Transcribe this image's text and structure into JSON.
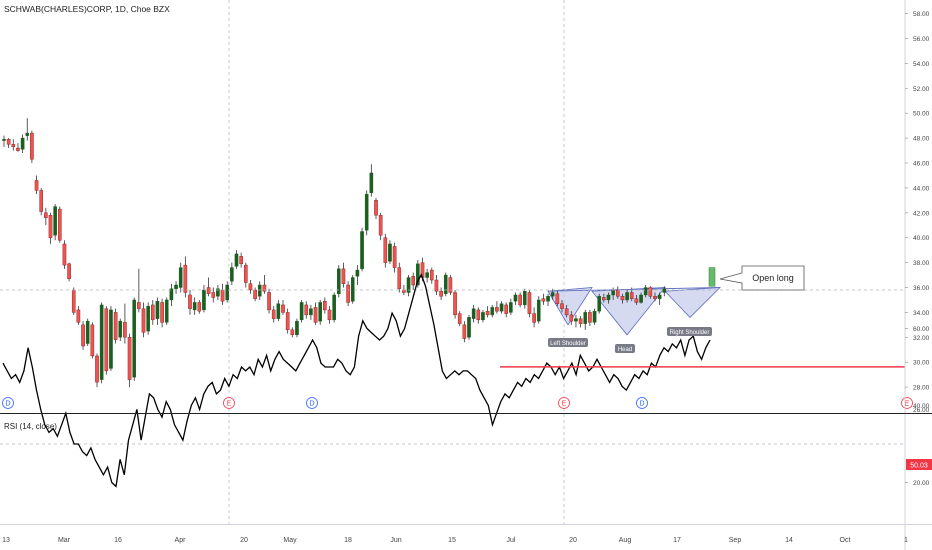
{
  "header": {
    "symbol_title": "SCHWAB(CHARLES)CORP, 1D, Choe BZX"
  },
  "colors": {
    "up": "#26a69a",
    "up_dark": "#1b5e20",
    "down": "#ef5350",
    "down_dark": "#7b1c1c",
    "wick": "#333333",
    "pattern_fill": "#c5cae9",
    "pattern_stroke": "#5c6bc0",
    "rsi_line": "#000000",
    "rsi_level": "#f23645",
    "price_box": "#f23645"
  },
  "chart_data": [
    {
      "type": "candlestick",
      "title": "SCHWAB(CHARLES)CORP, 1D, Choe BZX",
      "y_axis": {
        "ticks": [
          "28.00",
          "30.00",
          "32.00",
          "34.00",
          "36.00",
          "38.00",
          "40.00",
          "42.00",
          "44.00",
          "46.00",
          "48.00",
          "50.00",
          "52.00",
          "54.00",
          "56.00",
          "58.00"
        ],
        "cut_label": "26.00",
        "range": [
          26,
          59
        ]
      },
      "x_axis": {
        "labels": [
          "13",
          "Mar",
          "16",
          "Apr",
          "20",
          "May",
          "18",
          "Jun",
          "15",
          "Jul",
          "20",
          "Aug",
          "17",
          "Sep",
          "14",
          "Oct",
          "1"
        ]
      },
      "candles": [
        [
          47.8,
          48.2,
          47.3,
          47.9
        ],
        [
          47.9,
          48.0,
          47.2,
          47.5
        ],
        [
          47.5,
          47.9,
          47.0,
          47.3
        ],
        [
          47.2,
          47.6,
          46.9,
          47.0
        ],
        [
          47.1,
          48.3,
          46.8,
          48.0
        ],
        [
          48.2,
          49.6,
          47.8,
          48.4
        ],
        [
          48.4,
          48.6,
          46.0,
          46.3
        ],
        [
          44.6,
          45.0,
          43.5,
          43.8
        ],
        [
          43.8,
          44.0,
          41.8,
          42.1
        ],
        [
          42.0,
          42.4,
          41.0,
          41.6
        ],
        [
          41.8,
          42.0,
          39.5,
          40.0
        ],
        [
          40.2,
          42.7,
          39.8,
          42.5
        ],
        [
          42.3,
          42.5,
          39.6,
          39.8
        ],
        [
          39.5,
          39.8,
          37.5,
          37.8
        ],
        [
          37.9,
          38.0,
          36.5,
          36.7
        ],
        [
          35.8,
          36.0,
          33.8,
          34.0
        ],
        [
          34.2,
          34.5,
          33.0,
          33.2
        ],
        [
          33.0,
          33.3,
          31.0,
          31.3
        ],
        [
          31.5,
          33.5,
          31.3,
          33.3
        ],
        [
          33.0,
          33.2,
          30.3,
          30.5
        ],
        [
          30.5,
          30.7,
          28.0,
          28.4
        ],
        [
          28.6,
          34.8,
          28.3,
          34.6
        ],
        [
          34.3,
          34.5,
          29.0,
          29.3
        ],
        [
          29.5,
          34.5,
          29.3,
          34.2
        ],
        [
          34.0,
          34.3,
          31.5,
          31.8
        ],
        [
          32.0,
          33.5,
          31.7,
          33.3
        ],
        [
          33.2,
          34.7,
          31.5,
          32.0
        ],
        [
          32.0,
          32.3,
          28.0,
          28.6
        ],
        [
          28.8,
          35.2,
          28.5,
          35.0
        ],
        [
          34.8,
          37.5,
          34.0,
          34.3
        ],
        [
          34.3,
          34.8,
          32.0,
          32.4
        ],
        [
          32.5,
          34.8,
          32.2,
          34.5
        ],
        [
          34.6,
          35.0,
          33.0,
          33.4
        ],
        [
          33.5,
          35.2,
          33.0,
          34.9
        ],
        [
          34.8,
          35.1,
          32.8,
          33.2
        ],
        [
          33.2,
          35.2,
          33.0,
          35.0
        ],
        [
          35.0,
          36.3,
          34.5,
          35.9
        ],
        [
          35.9,
          36.5,
          35.5,
          36.2
        ],
        [
          36.0,
          38.0,
          35.6,
          37.6
        ],
        [
          37.8,
          38.5,
          35.2,
          35.6
        ],
        [
          35.4,
          35.8,
          33.8,
          34.3
        ],
        [
          34.2,
          35.2,
          33.8,
          34.8
        ],
        [
          34.8,
          35.0,
          33.9,
          34.1
        ],
        [
          34.2,
          36.2,
          34.0,
          35.8
        ],
        [
          36.0,
          36.8,
          35.3,
          35.5
        ],
        [
          35.6,
          36.0,
          34.8,
          35.2
        ],
        [
          35.3,
          36.2,
          35.0,
          35.9
        ],
        [
          35.8,
          36.3,
          34.6,
          34.9
        ],
        [
          35.0,
          36.5,
          34.8,
          36.2
        ],
        [
          36.5,
          38.0,
          36.2,
          37.6
        ],
        [
          37.7,
          39.0,
          37.5,
          38.7
        ],
        [
          38.5,
          38.8,
          37.6,
          37.9
        ],
        [
          37.8,
          38.0,
          36.0,
          36.4
        ],
        [
          36.3,
          36.6,
          35.5,
          35.8
        ],
        [
          35.8,
          36.0,
          34.9,
          35.1
        ],
        [
          35.3,
          36.5,
          35.0,
          36.2
        ],
        [
          36.2,
          37.0,
          35.5,
          35.7
        ],
        [
          35.6,
          35.9,
          33.9,
          34.2
        ],
        [
          34.2,
          34.5,
          33.2,
          33.5
        ],
        [
          33.5,
          35.0,
          33.3,
          34.7
        ],
        [
          34.6,
          35.0,
          33.8,
          34.0
        ],
        [
          34.0,
          34.3,
          32.3,
          32.6
        ],
        [
          32.6,
          32.8,
          32.0,
          32.2
        ],
        [
          32.2,
          33.5,
          32.0,
          33.3
        ],
        [
          33.4,
          35.0,
          33.2,
          34.8
        ],
        [
          34.6,
          34.9,
          33.5,
          33.8
        ],
        [
          33.8,
          34.6,
          33.4,
          34.3
        ],
        [
          34.4,
          34.8,
          33.0,
          33.2
        ],
        [
          33.3,
          35.0,
          33.0,
          34.8
        ],
        [
          34.9,
          35.2,
          33.9,
          34.2
        ],
        [
          34.2,
          34.5,
          33.1,
          33.4
        ],
        [
          33.4,
          35.6,
          33.2,
          35.4
        ],
        [
          35.5,
          37.8,
          35.2,
          37.5
        ],
        [
          37.5,
          38.0,
          36.0,
          36.3
        ],
        [
          36.2,
          36.5,
          34.5,
          34.8
        ],
        [
          34.9,
          37.0,
          34.7,
          36.8
        ],
        [
          36.9,
          37.8,
          36.2,
          37.4
        ],
        [
          37.5,
          40.8,
          37.3,
          40.5
        ],
        [
          40.6,
          43.8,
          40.2,
          43.5
        ],
        [
          43.6,
          45.9,
          43.3,
          45.2
        ],
        [
          43.0,
          43.2,
          41.5,
          41.8
        ],
        [
          41.8,
          42.0,
          39.8,
          40.2
        ],
        [
          40.0,
          40.3,
          37.6,
          38.0
        ],
        [
          38.1,
          39.8,
          37.9,
          39.5
        ],
        [
          39.3,
          39.6,
          37.2,
          37.6
        ],
        [
          37.6,
          38.0,
          35.6,
          35.9
        ],
        [
          35.8,
          36.2,
          35.4,
          35.6
        ],
        [
          35.6,
          37.0,
          35.3,
          36.8
        ],
        [
          36.9,
          37.2,
          35.8,
          36.2
        ],
        [
          36.2,
          38.2,
          36.0,
          37.9
        ],
        [
          38.0,
          38.4,
          36.5,
          36.8
        ],
        [
          36.8,
          37.5,
          36.4,
          37.2
        ],
        [
          37.4,
          37.6,
          36.3,
          36.6
        ],
        [
          36.6,
          37.0,
          35.4,
          35.7
        ],
        [
          35.7,
          36.0,
          35.0,
          35.3
        ],
        [
          35.5,
          37.2,
          35.3,
          37.0
        ],
        [
          36.8,
          37.0,
          35.4,
          35.6
        ],
        [
          35.6,
          35.8,
          33.5,
          33.8
        ],
        [
          33.9,
          34.1,
          32.9,
          33.1
        ],
        [
          33.0,
          33.3,
          31.6,
          31.9
        ],
        [
          32.0,
          33.8,
          31.8,
          33.6
        ],
        [
          33.5,
          34.6,
          33.2,
          34.3
        ],
        [
          34.2,
          34.4,
          33.1,
          33.4
        ],
        [
          33.4,
          34.2,
          33.2,
          34.0
        ],
        [
          34.1,
          34.5,
          33.6,
          33.8
        ],
        [
          33.8,
          34.6,
          33.6,
          34.4
        ],
        [
          34.4,
          34.9,
          33.9,
          34.1
        ],
        [
          34.1,
          34.9,
          33.9,
          34.7
        ],
        [
          34.6,
          34.8,
          33.6,
          33.9
        ],
        [
          34.0,
          35.1,
          33.8,
          34.8
        ],
        [
          34.9,
          35.6,
          34.6,
          35.4
        ],
        [
          35.4,
          35.6,
          34.4,
          34.6
        ],
        [
          34.6,
          35.9,
          34.3,
          35.7
        ],
        [
          35.6,
          35.8,
          33.6,
          33.9
        ],
        [
          33.9,
          34.4,
          32.8,
          33.2
        ],
        [
          33.3,
          35.3,
          33.1,
          35.0
        ],
        [
          35.1,
          35.5,
          34.6,
          34.9
        ],
        [
          34.9,
          35.5,
          34.5,
          35.3
        ],
        [
          35.3,
          35.9,
          35.0,
          35.6
        ],
        [
          35.5,
          35.7,
          34.5,
          34.7
        ],
        [
          34.7,
          35.0,
          34.0,
          34.3
        ],
        [
          34.3,
          34.6,
          33.6,
          33.8
        ],
        [
          33.8,
          34.1,
          33.0,
          33.3
        ],
        [
          33.3,
          33.8,
          32.8,
          33.5
        ],
        [
          33.5,
          33.7,
          32.8,
          33.1
        ],
        [
          33.1,
          34.2,
          32.6,
          34.0
        ],
        [
          34.0,
          34.2,
          32.9,
          33.2
        ],
        [
          33.2,
          34.3,
          33.0,
          34.1
        ],
        [
          34.1,
          35.5,
          33.9,
          35.3
        ],
        [
          35.2,
          35.5,
          34.8,
          35.0
        ],
        [
          35.0,
          35.6,
          34.7,
          35.4
        ],
        [
          35.4,
          36.0,
          35.0,
          35.8
        ],
        [
          35.8,
          36.1,
          35.1,
          35.3
        ],
        [
          35.3,
          35.5,
          34.7,
          35.0
        ],
        [
          35.0,
          35.8,
          34.8,
          35.6
        ],
        [
          35.6,
          36.0,
          34.9,
          35.1
        ],
        [
          35.1,
          35.4,
          34.6,
          34.8
        ],
        [
          34.8,
          35.6,
          34.7,
          35.4
        ],
        [
          35.4,
          36.2,
          35.2,
          36.0
        ],
        [
          36.0,
          36.1,
          35.1,
          35.3
        ],
        [
          35.3,
          35.6,
          34.9,
          35.1
        ],
        [
          35.1,
          35.6,
          34.6,
          35.4
        ],
        [
          35.6,
          36.1,
          35.3,
          35.9
        ]
      ],
      "last_bar": {
        "open": 36.1,
        "close": 37.6
      },
      "pattern": {
        "name": "inverse head and shoulders",
        "neckline": [
          35.7,
          36.0
        ]
      },
      "annotations": [
        "Left Shoulder",
        "Head",
        "Right Shoulder",
        "Open long"
      ],
      "event_markers": [
        {
          "label": "D",
          "color": "#2962ff"
        },
        {
          "label": "E",
          "color": "#f23645"
        },
        {
          "label": "D",
          "color": "#2962ff"
        },
        {
          "label": "E",
          "color": "#f23645"
        },
        {
          "label": "D",
          "color": "#2962ff"
        },
        {
          "label": "E",
          "color": "#f23645"
        }
      ]
    },
    {
      "type": "line",
      "title": "RSI (14, close)",
      "y_axis": {
        "ticks": [
          "20.00",
          "40.00",
          "60.00"
        ],
        "range": [
          10,
          75
        ]
      },
      "value_label": "50.03",
      "level": 50.03,
      "dashed_levels": [
        70,
        30
      ],
      "values": [
        51,
        49,
        47,
        48,
        46,
        49,
        55,
        50,
        44,
        39,
        35,
        33,
        34,
        32,
        35,
        38,
        33,
        30,
        30,
        28,
        27,
        29,
        26,
        24,
        22,
        24,
        20,
        19,
        26,
        22,
        31,
        35,
        39,
        31,
        37,
        43,
        42,
        39,
        37,
        41,
        39,
        35,
        33,
        31,
        36,
        40,
        42,
        39,
        43,
        45,
        46,
        43,
        44,
        47,
        45,
        48,
        47,
        50,
        49,
        50,
        48,
        52,
        50,
        53,
        49,
        52,
        54,
        52,
        51,
        50,
        49,
        51,
        53,
        55,
        57,
        55,
        51,
        50,
        50,
        50,
        52,
        51,
        49,
        48,
        50,
        58,
        62,
        60,
        59,
        58,
        57,
        58,
        60,
        64,
        62,
        58,
        60,
        64,
        68,
        72,
        74,
        71,
        66,
        61,
        55,
        49,
        47,
        48,
        49,
        48,
        49,
        49,
        48,
        47,
        44,
        42,
        40,
        35,
        38,
        41,
        43,
        42,
        44,
        46,
        45,
        47,
        46,
        48,
        47,
        49,
        51,
        50,
        48,
        50,
        47,
        49,
        51,
        48,
        53,
        51,
        49,
        50,
        52,
        50,
        48,
        46,
        48,
        47,
        45,
        44,
        46,
        48,
        47,
        49,
        48,
        51,
        50,
        53,
        55,
        54,
        56,
        55,
        57,
        53,
        57,
        58,
        54,
        52,
        55,
        57
      ]
    }
  ]
}
